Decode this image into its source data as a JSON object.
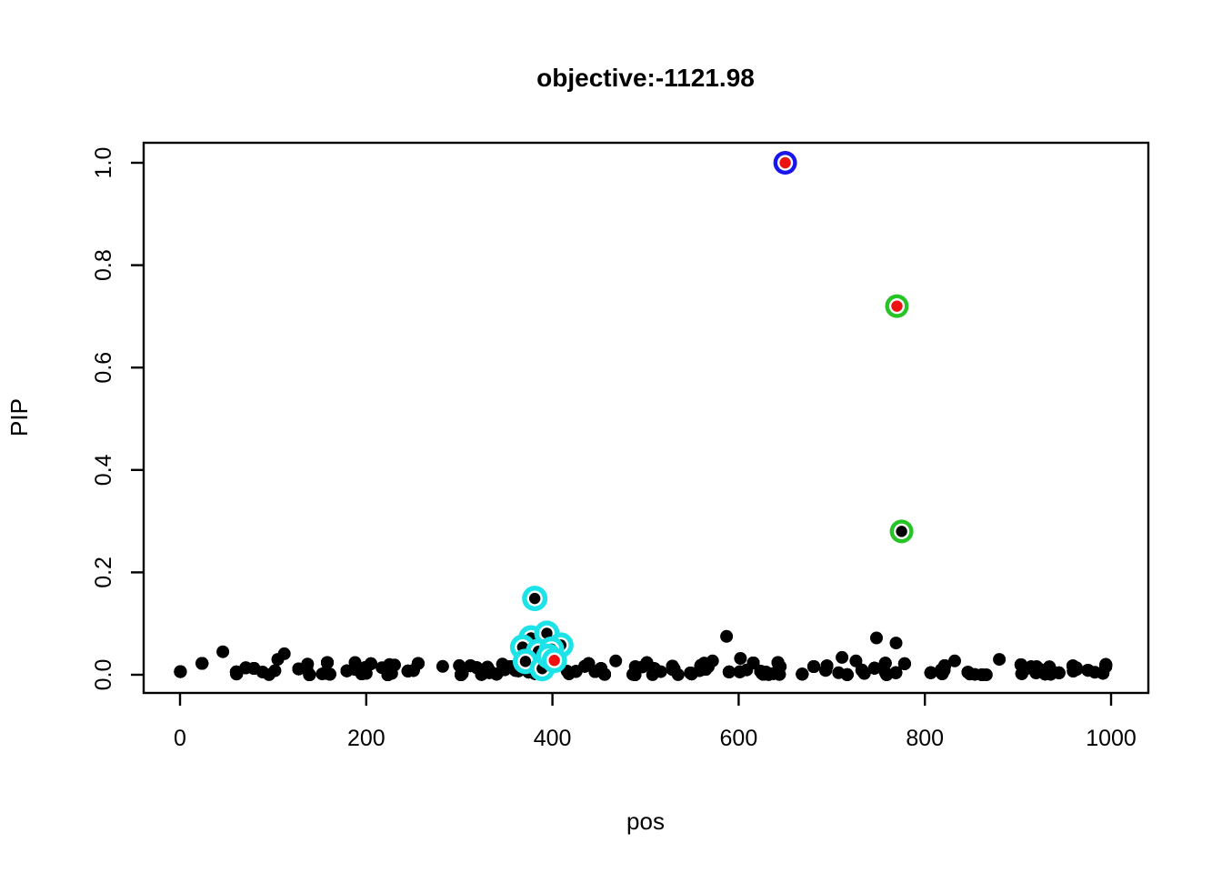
{
  "figure": {
    "background": "#ffffff"
  },
  "chart_data": {
    "type": "scatter",
    "title": "objective:-1121.98",
    "xlabel": "pos",
    "ylabel": "PIP",
    "xlim": [
      0,
      1000
    ],
    "ylim": [
      0.0,
      1.0
    ],
    "x_ticks": [
      0,
      200,
      400,
      600,
      800,
      1000
    ],
    "y_ticks": [
      "0.0",
      "0.2",
      "0.4",
      "0.6",
      "0.8",
      "1.0"
    ],
    "grid": false,
    "legend": "none",
    "colors": {
      "point": "#000000",
      "red": "#EE1111",
      "green": "#27C427",
      "blue": "#1A14EE",
      "cyan": "#1CE3E8",
      "gap": "#FFFFFF",
      "axis": "#000000"
    },
    "highlighted_points": [
      {
        "pos": 650,
        "pip": 1.0,
        "ring_color": "blue",
        "dot_color": "red"
      },
      {
        "pos": 770,
        "pip": 0.72,
        "ring_color": "green",
        "dot_color": "red"
      },
      {
        "pos": 775,
        "pip": 0.28,
        "ring_color": "green",
        "dot_color": "black"
      }
    ],
    "cyan_highlighted_points": [
      {
        "pos": 381,
        "pip": 0.149,
        "dot_color": "black"
      },
      {
        "pos": 377,
        "pip": 0.072,
        "dot_color": "black"
      },
      {
        "pos": 394,
        "pip": 0.081,
        "dot_color": "black"
      },
      {
        "pos": 368,
        "pip": 0.054,
        "dot_color": "black"
      },
      {
        "pos": 409,
        "pip": 0.058,
        "dot_color": "black"
      },
      {
        "pos": 385,
        "pip": 0.046,
        "dot_color": "black"
      },
      {
        "pos": 399,
        "pip": 0.05,
        "dot_color": "black"
      },
      {
        "pos": 371,
        "pip": 0.026,
        "dot_color": "black"
      },
      {
        "pos": 389,
        "pip": 0.012,
        "dot_color": "black"
      },
      {
        "pos": 396,
        "pip": 0.036,
        "dot_color": "black"
      },
      {
        "pos": 402,
        "pip": 0.028,
        "dot_color": "red"
      }
    ],
    "notable_points": [
      {
        "pos": 46,
        "pip": 0.045
      },
      {
        "pos": 105,
        "pip": 0.03
      },
      {
        "pos": 112,
        "pip": 0.041
      },
      {
        "pos": 137,
        "pip": 0.021
      },
      {
        "pos": 188,
        "pip": 0.024
      },
      {
        "pos": 225,
        "pip": 0.02
      },
      {
        "pos": 300,
        "pip": 0.018
      },
      {
        "pos": 468,
        "pip": 0.027
      },
      {
        "pos": 489,
        "pip": 0.016
      },
      {
        "pos": 563,
        "pip": 0.023
      },
      {
        "pos": 572,
        "pip": 0.027
      },
      {
        "pos": 587,
        "pip": 0.075
      },
      {
        "pos": 602,
        "pip": 0.032
      },
      {
        "pos": 711,
        "pip": 0.034
      },
      {
        "pos": 726,
        "pip": 0.027
      },
      {
        "pos": 748,
        "pip": 0.072
      },
      {
        "pos": 769,
        "pip": 0.062
      },
      {
        "pos": 832,
        "pip": 0.027
      },
      {
        "pos": 880,
        "pip": 0.03
      },
      {
        "pos": 920,
        "pip": 0.016
      }
    ],
    "baseline_band": {
      "description": "dense band of black points along PIP ~ 0 spanning full pos range",
      "n": 900,
      "pos_range": [
        0,
        1000
      ],
      "pip_range": [
        0.0,
        0.024
      ],
      "seed": 9
    }
  }
}
